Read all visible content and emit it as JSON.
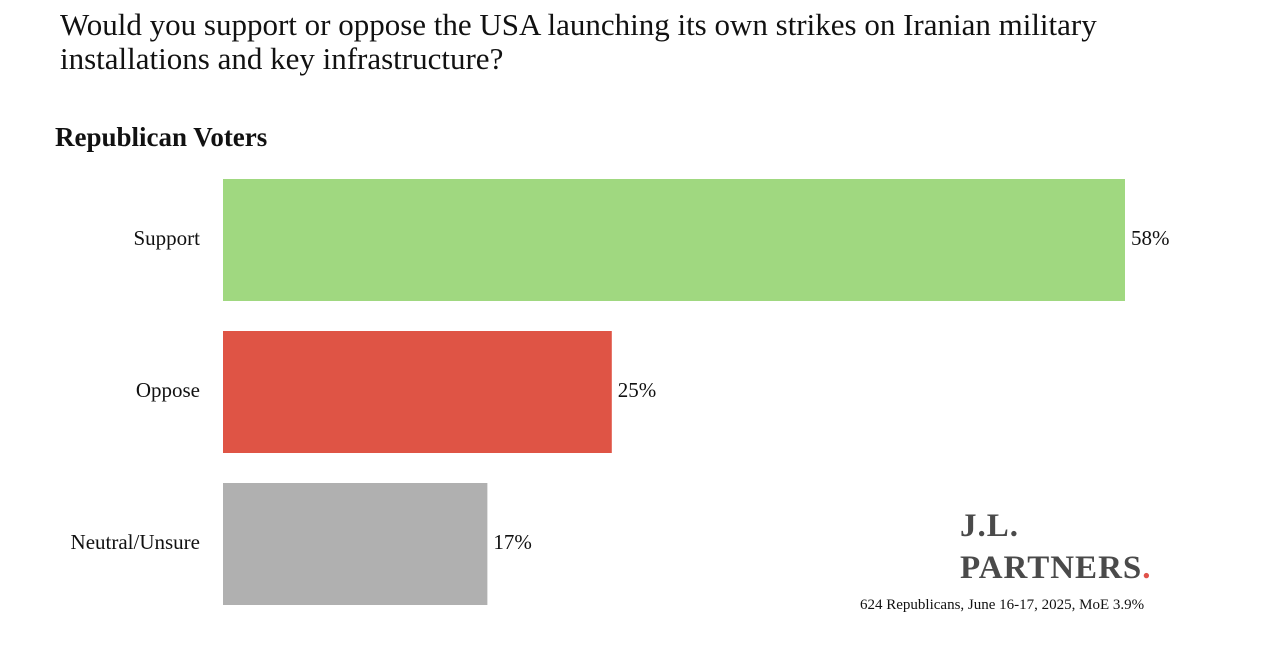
{
  "question": "Would you support or oppose the USA launching its own strikes on Iranian military installations and key infrastructure?",
  "subtitle": "Republican Voters",
  "chart_data": {
    "type": "bar",
    "orientation": "horizontal",
    "title": "Would you support or oppose the USA launching its own strikes on Iranian military installations and key infrastructure?",
    "subtitle": "Republican Voters",
    "categories": [
      "Support",
      "Oppose",
      "Neutral/Unsure"
    ],
    "values": [
      58,
      25,
      17
    ],
    "value_labels": [
      "58%",
      "25%",
      "17%"
    ],
    "colors": [
      "#a0d880",
      "#df5445",
      "#b0b0b0"
    ],
    "xlabel": "",
    "ylabel": "",
    "xlim": [
      0,
      58
    ],
    "grid": false,
    "legend": "none"
  },
  "brand": {
    "line1": "J.L.",
    "line2": "PARTNERS",
    "dot": "."
  },
  "source": "624 Republicans, June 16-17, 2025, MoE 3.9%"
}
